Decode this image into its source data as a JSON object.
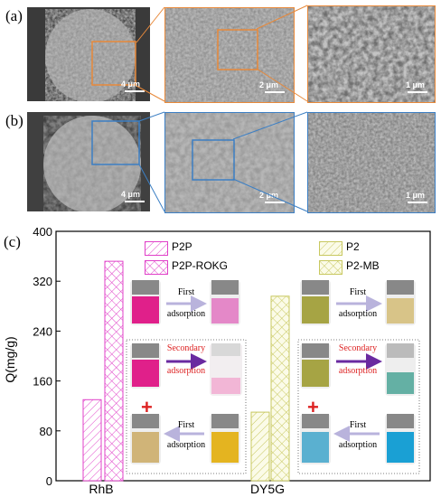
{
  "panel_labels": {
    "a": "(a)",
    "b": "(b)",
    "c": "(c)"
  },
  "sem": {
    "row_a": {
      "scales": [
        "4 μm",
        "2 μm",
        "1 μm"
      ],
      "frame_color": "#e8893a"
    },
    "row_b": {
      "scales": [
        "4 μm",
        "2 μm",
        "1 μm"
      ],
      "frame_color": "#3c7fc4"
    }
  },
  "chart_data": {
    "type": "bar",
    "ylabel": "Q(mg/g)",
    "ylim": [
      0,
      400
    ],
    "yticks": [
      0,
      80,
      160,
      240,
      320,
      400
    ],
    "categories": [
      "RhB",
      "DY5G"
    ],
    "series": [
      {
        "name": "P2P",
        "category": "RhB",
        "value": 130,
        "color": "#e040c8",
        "pattern": "diagonal"
      },
      {
        "name": "P2P-ROKG",
        "category": "RhB",
        "value": 352,
        "color": "#e040c8",
        "pattern": "crosshatch"
      },
      {
        "name": "P2",
        "category": "DY5G",
        "value": 110,
        "color": "#c8c860",
        "pattern": "diagonal"
      },
      {
        "name": "P2-MB",
        "category": "DY5G",
        "value": 296,
        "color": "#c8c860",
        "pattern": "crosshatch"
      }
    ]
  },
  "insets": {
    "left": {
      "first_top": [
        "First",
        "adsorption"
      ],
      "secondary": [
        "Secondary",
        "adsorption"
      ],
      "first_bottom": [
        "First",
        "adsorption"
      ]
    },
    "right": {
      "first_top": [
        "First",
        "adsorption"
      ],
      "secondary": [
        "Secondary",
        "adsorption"
      ],
      "first_bottom": [
        "First",
        "adsorption"
      ]
    }
  }
}
